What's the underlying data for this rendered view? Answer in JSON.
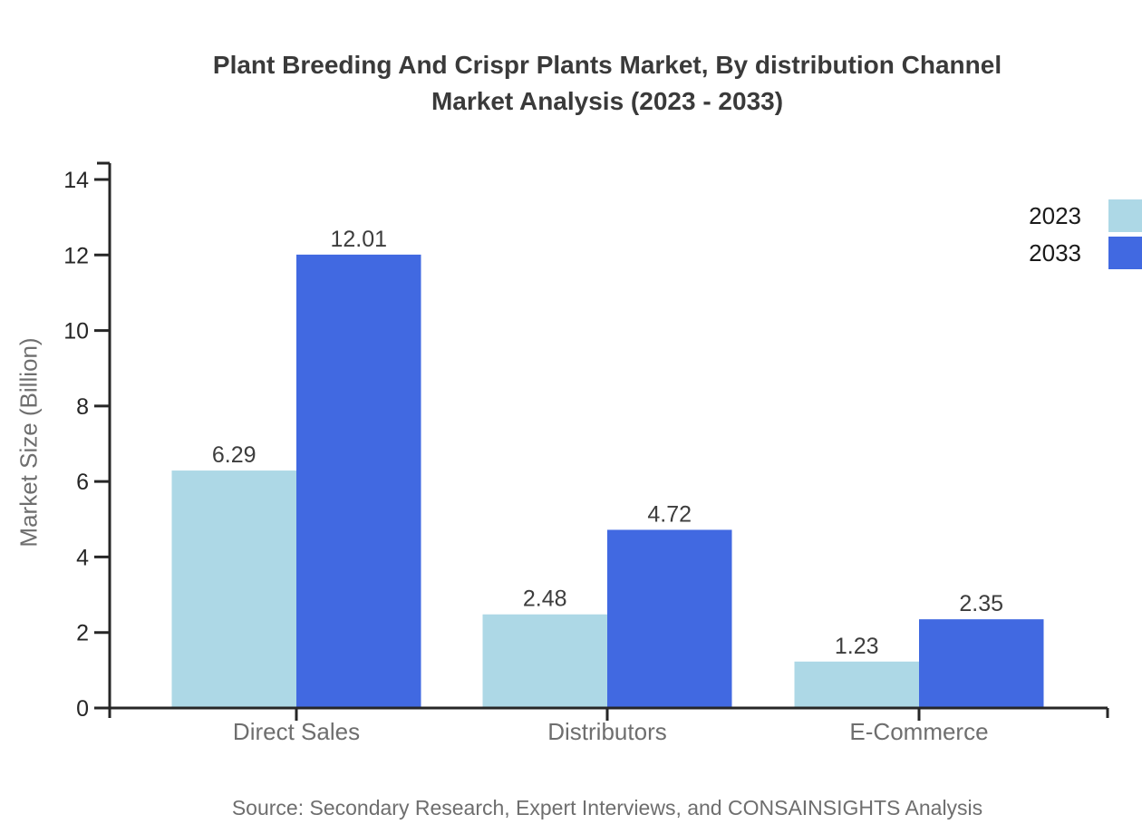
{
  "title": {
    "line1": "Plant Breeding And Crispr Plants Market, By distribution Channel",
    "line2": "Market Analysis (2023 - 2033)"
  },
  "y_axis": {
    "label": "Market Size (Billion)"
  },
  "source": {
    "text": "Source: Secondary Research, Expert Interviews, and CONSAINSIGHTS Analysis"
  },
  "legend": {
    "items": [
      {
        "label": "2023",
        "color": "#ADD8E6"
      },
      {
        "label": "2033",
        "color": "#4169E1"
      }
    ]
  },
  "colors": {
    "series_2023": "#ADD8E6",
    "series_2033": "#4169E1",
    "axis": "#262626",
    "value_label": "#3d3d3d",
    "category_label": "#6e6e6e",
    "muted_text": "#6e6e6e",
    "title_text": "#3a3a3a"
  },
  "chart_data": {
    "type": "bar",
    "title": "Plant Breeding And Crispr Plants Market, By distribution Channel Market Analysis (2023 - 2033)",
    "categories": [
      "Direct Sales",
      "Distributors",
      "E-Commerce"
    ],
    "series": [
      {
        "name": "2023",
        "color": "#ADD8E6",
        "values": [
          6.29,
          2.48,
          1.23
        ]
      },
      {
        "name": "2033",
        "color": "#4169E1",
        "values": [
          12.01,
          4.72,
          2.35
        ]
      }
    ],
    "xlabel": "",
    "ylabel": "Market Size (Billion)",
    "ylim": [
      0,
      14
    ],
    "yticks": [
      0,
      2,
      4,
      6,
      8,
      10,
      12,
      14
    ],
    "grid": false,
    "legend_position": "top-right",
    "value_labels": true,
    "value_label_format": "2-decimals"
  }
}
